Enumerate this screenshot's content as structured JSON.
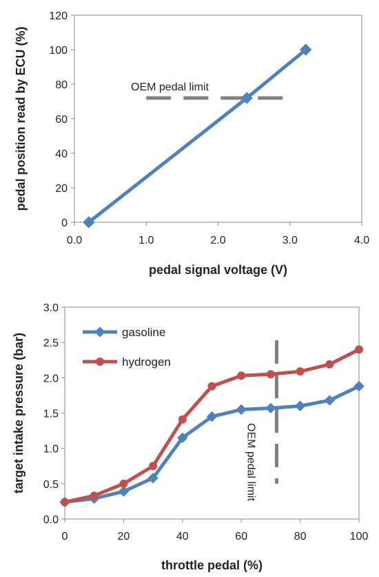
{
  "chart_data": [
    {
      "type": "line",
      "xlabel": "pedal signal voltage (V)",
      "ylabel": "pedal position read by ECU (%)",
      "xlim": [
        0,
        4
      ],
      "ylim": [
        0,
        120
      ],
      "x_ticks": [
        "0.0",
        "1.0",
        "2.0",
        "3.0",
        "4.0"
      ],
      "y_ticks": [
        "0",
        "20",
        "40",
        "60",
        "80",
        "100",
        "120"
      ],
      "grid": false,
      "series": [
        {
          "color": "#4f81bd",
          "marker": "diamond",
          "points": [
            [
              0.2,
              0
            ],
            [
              2.4,
              72
            ],
            [
              3.22,
              100
            ]
          ]
        }
      ],
      "reference_line": {
        "label": "OEM pedal limit",
        "y": 72,
        "x_range": [
          1.0,
          3.0
        ],
        "color": "#808080",
        "style": "dashed"
      }
    },
    {
      "type": "line",
      "xlabel": "throttle pedal (%)",
      "ylabel": "target intake pressure (bar)",
      "xlim": [
        0,
        100
      ],
      "ylim": [
        0,
        3
      ],
      "x_ticks": [
        "0",
        "20",
        "40",
        "60",
        "80",
        "100"
      ],
      "y_ticks": [
        "0.0",
        "0.5",
        "1.0",
        "1.5",
        "2.0",
        "2.5",
        "3.0"
      ],
      "grid": false,
      "legend_position": "top-left",
      "x": [
        0,
        10,
        20,
        30,
        40,
        50,
        60,
        70,
        80,
        90,
        100
      ],
      "series": [
        {
          "name": "gasoline",
          "color": "#4f81bd",
          "marker": "diamond",
          "values": [
            0.24,
            0.29,
            0.39,
            0.58,
            1.15,
            1.45,
            1.55,
            1.57,
            1.6,
            1.68,
            1.88
          ]
        },
        {
          "name": "hydrogen",
          "color": "#c0504d",
          "marker": "circle",
          "values": [
            0.24,
            0.33,
            0.5,
            0.75,
            1.41,
            1.88,
            2.03,
            2.05,
            2.09,
            2.19,
            2.4
          ]
        }
      ],
      "reference_line": {
        "label": "OEM pedal limit",
        "x": 72,
        "y_range": [
          0.5,
          3.0
        ],
        "color": "#808080",
        "style": "dashed",
        "orientation": "vertical"
      }
    }
  ]
}
